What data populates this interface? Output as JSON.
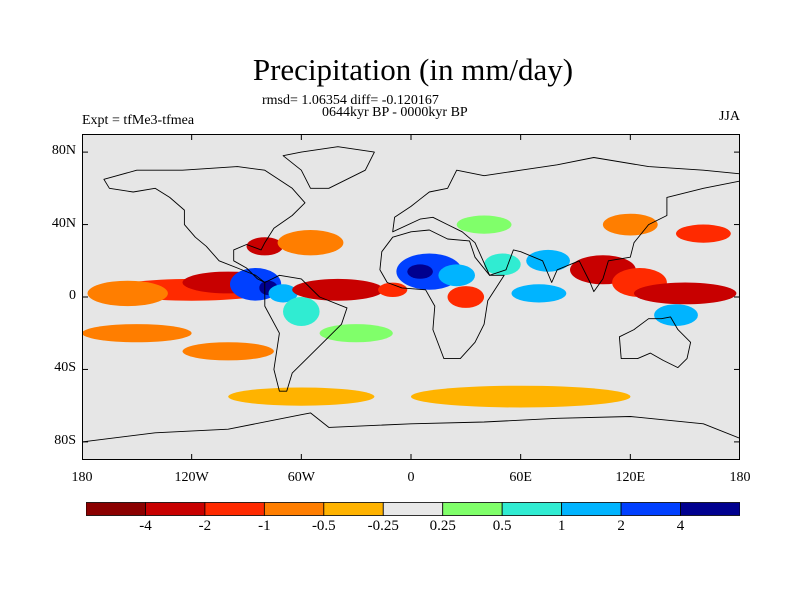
{
  "title": "Precipitation (in mm/day)",
  "stats_line": "rmsd= 1.06354 diff= -0.120167",
  "period_line": "0644kyr BP - 0000kyr BP",
  "expt_label": "Expt = tfMe3-tfmea",
  "season_label": "JJA",
  "lat_ticks": [
    {
      "label": "80N",
      "lat": 80
    },
    {
      "label": "40N",
      "lat": 40
    },
    {
      "label": "0",
      "lat": 0
    },
    {
      "label": "40S",
      "lat": -40
    },
    {
      "label": "80S",
      "lat": -80
    }
  ],
  "lon_ticks": [
    {
      "label": "180",
      "lon": -180
    },
    {
      "label": "120W",
      "lon": -120
    },
    {
      "label": "60W",
      "lon": -60
    },
    {
      "label": "0",
      "lon": 0
    },
    {
      "label": "60E",
      "lon": 60
    },
    {
      "label": "120E",
      "lon": 120
    },
    {
      "label": "180",
      "lon": 180
    }
  ],
  "lat_range": [
    -90,
    90
  ],
  "lon_range": [
    -180,
    180
  ],
  "colorbar": {
    "colors": [
      "#8b0000",
      "#c80000",
      "#ff2a00",
      "#ff7e00",
      "#ffb300",
      "#e8e8e8",
      "#80ff6a",
      "#30ecd2",
      "#00b4ff",
      "#0040ff",
      "#00008f"
    ],
    "tick_labels": [
      "-4",
      "-2",
      "-1",
      "-0.5",
      "-0.25",
      "0.25",
      "0.5",
      "1",
      "2",
      "4"
    ]
  },
  "background_color": "#e6e6e6",
  "anomaly_regions": [
    {
      "lon": -120,
      "lat": 4,
      "rx": 45,
      "ry": 6,
      "color": "#ff2a00"
    },
    {
      "lon": -155,
      "lat": 2,
      "rx": 22,
      "ry": 7,
      "color": "#ff7e00"
    },
    {
      "lon": -100,
      "lat": 8,
      "rx": 25,
      "ry": 6,
      "color": "#c80000"
    },
    {
      "lon": -85,
      "lat": 7,
      "rx": 14,
      "ry": 9,
      "color": "#0040ff"
    },
    {
      "lon": -78,
      "lat": 5,
      "rx": 5,
      "ry": 4,
      "color": "#00008f"
    },
    {
      "lon": -70,
      "lat": 2,
      "rx": 8,
      "ry": 5,
      "color": "#00b4ff"
    },
    {
      "lon": -60,
      "lat": -8,
      "rx": 10,
      "ry": 8,
      "color": "#30ecd2"
    },
    {
      "lon": -80,
      "lat": 28,
      "rx": 10,
      "ry": 5,
      "color": "#c80000"
    },
    {
      "lon": -55,
      "lat": 30,
      "rx": 18,
      "ry": 7,
      "color": "#ff7e00"
    },
    {
      "lon": -40,
      "lat": 4,
      "rx": 25,
      "ry": 6,
      "color": "#c80000"
    },
    {
      "lon": -10,
      "lat": 4,
      "rx": 8,
      "ry": 4,
      "color": "#ff2a00"
    },
    {
      "lon": 10,
      "lat": 14,
      "rx": 18,
      "ry": 10,
      "color": "#0040ff"
    },
    {
      "lon": 5,
      "lat": 14,
      "rx": 7,
      "ry": 4,
      "color": "#00008f"
    },
    {
      "lon": 25,
      "lat": 12,
      "rx": 10,
      "ry": 6,
      "color": "#00b4ff"
    },
    {
      "lon": 30,
      "lat": 0,
      "rx": 10,
      "ry": 6,
      "color": "#ff2a00"
    },
    {
      "lon": 50,
      "lat": 18,
      "rx": 10,
      "ry": 6,
      "color": "#30ecd2"
    },
    {
      "lon": 40,
      "lat": 40,
      "rx": 15,
      "ry": 5,
      "color": "#80ff6a"
    },
    {
      "lon": 75,
      "lat": 20,
      "rx": 12,
      "ry": 6,
      "color": "#00b4ff"
    },
    {
      "lon": 70,
      "lat": 2,
      "rx": 15,
      "ry": 5,
      "color": "#00b4ff"
    },
    {
      "lon": 105,
      "lat": 15,
      "rx": 18,
      "ry": 8,
      "color": "#c80000"
    },
    {
      "lon": 125,
      "lat": 8,
      "rx": 15,
      "ry": 8,
      "color": "#ff2a00"
    },
    {
      "lon": 150,
      "lat": 2,
      "rx": 28,
      "ry": 6,
      "color": "#c80000"
    },
    {
      "lon": 145,
      "lat": -10,
      "rx": 12,
      "ry": 6,
      "color": "#00b4ff"
    },
    {
      "lon": -150,
      "lat": -20,
      "rx": 30,
      "ry": 5,
      "color": "#ff7e00"
    },
    {
      "lon": -100,
      "lat": -30,
      "rx": 25,
      "ry": 5,
      "color": "#ff7e00"
    },
    {
      "lon": -30,
      "lat": -20,
      "rx": 20,
      "ry": 5,
      "color": "#80ff6a"
    },
    {
      "lon": 60,
      "lat": -55,
      "rx": 60,
      "ry": 6,
      "color": "#ffb300"
    },
    {
      "lon": -60,
      "lat": -55,
      "rx": 40,
      "ry": 5,
      "color": "#ffb300"
    },
    {
      "lon": 120,
      "lat": 40,
      "rx": 15,
      "ry": 6,
      "color": "#ff7e00"
    },
    {
      "lon": 160,
      "lat": 35,
      "rx": 15,
      "ry": 5,
      "color": "#ff2a00"
    }
  ],
  "continents": [
    {
      "name": "North America",
      "coords": [
        [
          -168,
          65
        ],
        [
          -150,
          70
        ],
        [
          -125,
          70
        ],
        [
          -95,
          72
        ],
        [
          -80,
          70
        ],
        [
          -65,
          60
        ],
        [
          -58,
          52
        ],
        [
          -65,
          45
        ],
        [
          -75,
          38
        ],
        [
          -80,
          30
        ],
        [
          -82,
          26
        ],
        [
          -90,
          29
        ],
        [
          -97,
          26
        ],
        [
          -97,
          20
        ],
        [
          -90,
          16
        ],
        [
          -84,
          10
        ],
        [
          -80,
          8
        ],
        [
          -85,
          12
        ],
        [
          -95,
          16
        ],
        [
          -105,
          20
        ],
        [
          -112,
          28
        ],
        [
          -118,
          33
        ],
        [
          -124,
          40
        ],
        [
          -124,
          48
        ],
        [
          -132,
          55
        ],
        [
          -140,
          60
        ],
        [
          -152,
          58
        ],
        [
          -165,
          60
        ]
      ]
    },
    {
      "name": "Greenland",
      "coords": [
        [
          -55,
          60
        ],
        [
          -45,
          60
        ],
        [
          -25,
          70
        ],
        [
          -20,
          80
        ],
        [
          -40,
          83
        ],
        [
          -60,
          80
        ],
        [
          -70,
          78
        ],
        [
          -60,
          70
        ]
      ]
    },
    {
      "name": "South America",
      "coords": [
        [
          -80,
          8
        ],
        [
          -72,
          12
        ],
        [
          -60,
          10
        ],
        [
          -50,
          0
        ],
        [
          -35,
          -6
        ],
        [
          -38,
          -15
        ],
        [
          -48,
          -25
        ],
        [
          -58,
          -35
        ],
        [
          -65,
          -42
        ],
        [
          -68,
          -52
        ],
        [
          -72,
          -52
        ],
        [
          -75,
          -40
        ],
        [
          -72,
          -20
        ],
        [
          -80,
          -5
        ]
      ]
    },
    {
      "name": "Africa",
      "coords": [
        [
          -17,
          15
        ],
        [
          -16,
          25
        ],
        [
          -10,
          33
        ],
        [
          0,
          36
        ],
        [
          10,
          37
        ],
        [
          20,
          32
        ],
        [
          32,
          31
        ],
        [
          35,
          22
        ],
        [
          43,
          12
        ],
        [
          51,
          12
        ],
        [
          42,
          -2
        ],
        [
          40,
          -15
        ],
        [
          35,
          -25
        ],
        [
          27,
          -34
        ],
        [
          18,
          -34
        ],
        [
          12,
          -18
        ],
        [
          13,
          -5
        ],
        [
          8,
          4
        ],
        [
          -5,
          5
        ],
        [
          -13,
          8
        ]
      ]
    },
    {
      "name": "Eurasia",
      "coords": [
        [
          -10,
          36
        ],
        [
          -9,
          44
        ],
        [
          0,
          50
        ],
        [
          5,
          54
        ],
        [
          10,
          58
        ],
        [
          20,
          60
        ],
        [
          25,
          70
        ],
        [
          40,
          67
        ],
        [
          60,
          70
        ],
        [
          80,
          73
        ],
        [
          100,
          77
        ],
        [
          130,
          72
        ],
        [
          160,
          70
        ],
        [
          180,
          68
        ],
        [
          180,
          64
        ],
        [
          160,
          60
        ],
        [
          140,
          55
        ],
        [
          140,
          45
        ],
        [
          130,
          40
        ],
        [
          122,
          30
        ],
        [
          120,
          22
        ],
        [
          108,
          20
        ],
        [
          105,
          10
        ],
        [
          100,
          3
        ],
        [
          98,
          8
        ],
        [
          92,
          20
        ],
        [
          80,
          15
        ],
        [
          77,
          8
        ],
        [
          72,
          20
        ],
        [
          60,
          25
        ],
        [
          56,
          26
        ],
        [
          52,
          15
        ],
        [
          43,
          12
        ],
        [
          35,
          30
        ],
        [
          28,
          36
        ],
        [
          20,
          40
        ],
        [
          12,
          44
        ],
        [
          5,
          43
        ]
      ]
    },
    {
      "name": "Australia",
      "coords": [
        [
          114,
          -22
        ],
        [
          122,
          -18
        ],
        [
          130,
          -12
        ],
        [
          137,
          -12
        ],
        [
          142,
          -11
        ],
        [
          146,
          -18
        ],
        [
          153,
          -25
        ],
        [
          151,
          -34
        ],
        [
          146,
          -39
        ],
        [
          138,
          -35
        ],
        [
          131,
          -31
        ],
        [
          124,
          -34
        ],
        [
          115,
          -34
        ]
      ]
    },
    {
      "name": "Antarctica",
      "coords": [
        [
          -180,
          -80
        ],
        [
          -140,
          -75
        ],
        [
          -100,
          -73
        ],
        [
          -60,
          -65
        ],
        [
          -55,
          -64
        ],
        [
          -45,
          -72
        ],
        [
          0,
          -70
        ],
        [
          40,
          -69
        ],
        [
          80,
          -67
        ],
        [
          120,
          -66
        ],
        [
          160,
          -70
        ],
        [
          180,
          -78
        ],
        [
          180,
          -90
        ],
        [
          -180,
          -90
        ]
      ]
    }
  ]
}
